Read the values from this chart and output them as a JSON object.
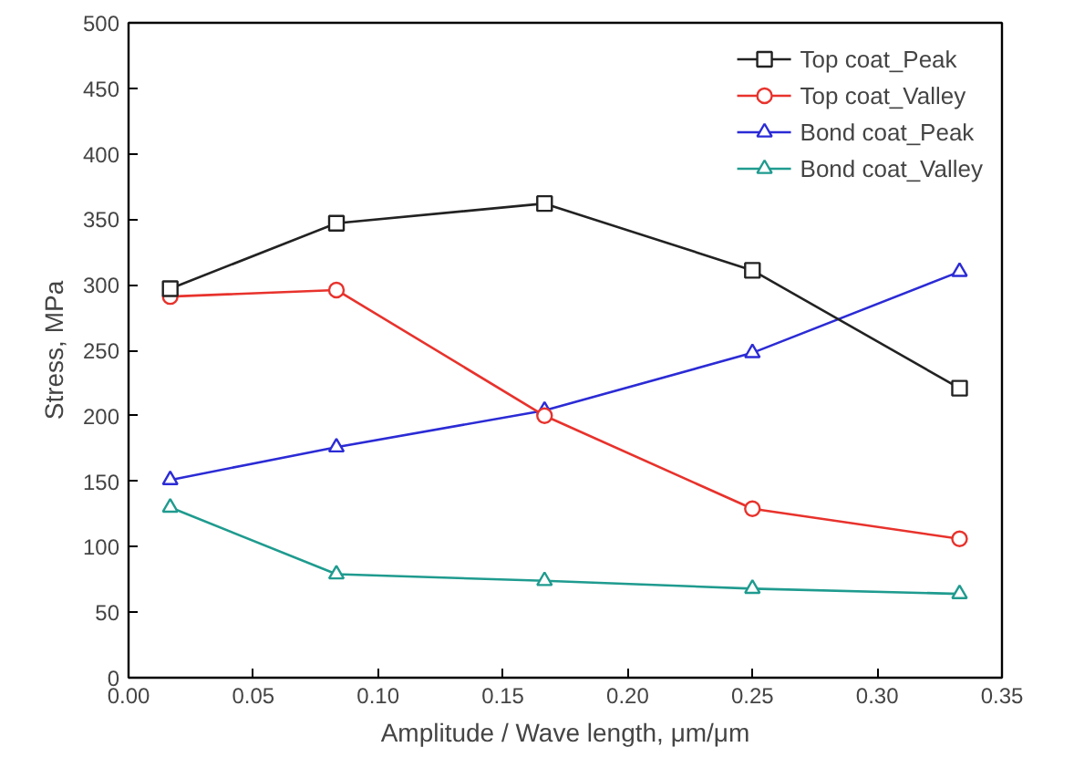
{
  "chart_data": {
    "type": "line",
    "xlabel": "Amplitude / Wave length, μm/μm",
    "ylabel": "Stress, MPa",
    "x": [
      0.0167,
      0.0833,
      0.1667,
      0.25,
      0.333
    ],
    "series": [
      {
        "name": "Top coat_Peak",
        "color": "#222222",
        "marker": "square",
        "values": [
          297,
          347,
          362,
          311,
          221
        ]
      },
      {
        "name": "Top coat_Valley",
        "color": "#e8322c",
        "marker": "circle",
        "values": [
          291,
          296,
          200,
          129,
          106
        ]
      },
      {
        "name": "Bond coat_Peak",
        "color": "#2b2bd6",
        "marker": "triangle",
        "values": [
          151,
          176,
          204,
          248,
          310
        ]
      },
      {
        "name": "Bond coat_Valley",
        "color": "#1f9b8f",
        "marker": "triangle",
        "values": [
          130,
          79,
          74,
          68,
          64
        ]
      }
    ],
    "xlim": [
      0,
      0.35
    ],
    "ylim": [
      0,
      500
    ],
    "xticks": [
      {
        "value": 0,
        "label": "0.00"
      },
      0.05,
      {
        "value": 0.1,
        "label": "0.10"
      },
      0.15,
      {
        "value": 0.2,
        "label": "0.20"
      },
      0.25,
      {
        "value": 0.3,
        "label": "0.30"
      },
      0.35
    ],
    "yticks": [
      0,
      50,
      100,
      150,
      200,
      250,
      300,
      350,
      400,
      450,
      500
    ],
    "legend": "top right",
    "grid": false,
    "line_style": "solid"
  }
}
